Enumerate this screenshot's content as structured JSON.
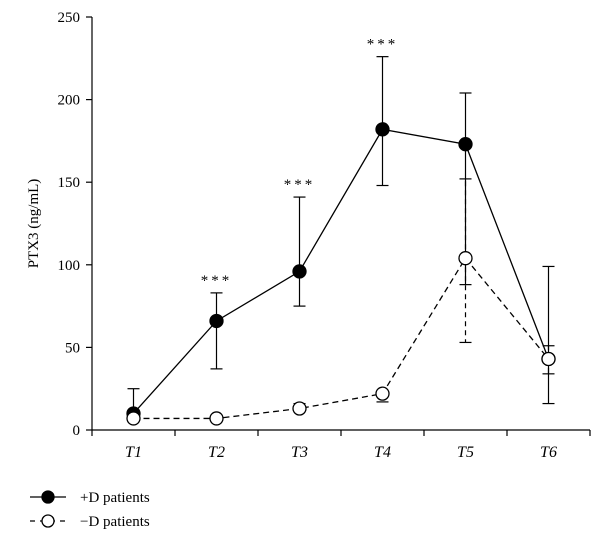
{
  "chart_data": {
    "type": "line",
    "ylabel": "PTX3 (ng/mL)",
    "xlabel": "",
    "categories": [
      "T1",
      "T2",
      "T3",
      "T4",
      "T5",
      "T6"
    ],
    "ylim": [
      0,
      250
    ],
    "yticks": [
      0,
      50,
      100,
      150,
      200,
      250
    ],
    "grid": false,
    "legend_position": "bottom-left",
    "series": [
      {
        "name": "+D patients",
        "values": [
          10,
          66,
          96,
          182,
          173,
          43
        ],
        "error_upper": [
          25,
          83,
          141,
          226,
          204,
          99
        ],
        "error_lower": [
          null,
          37,
          75,
          148,
          88,
          16
        ],
        "marker": "filled-circle",
        "line_style": "solid",
        "color": "#000000"
      },
      {
        "name": "−D patients",
        "values": [
          7,
          7,
          13,
          22,
          104,
          43
        ],
        "error_upper": [
          null,
          null,
          16,
          24,
          152,
          51
        ],
        "error_lower": [
          null,
          null,
          null,
          17,
          53,
          34
        ],
        "marker": "open-circle",
        "line_style": "dashed",
        "color": "#000000"
      }
    ],
    "annotations": [
      {
        "category": "T2",
        "y": 83,
        "text": "***"
      },
      {
        "category": "T3",
        "y": 141,
        "text": "***"
      },
      {
        "category": "T4",
        "y": 226,
        "text": "***"
      }
    ]
  }
}
